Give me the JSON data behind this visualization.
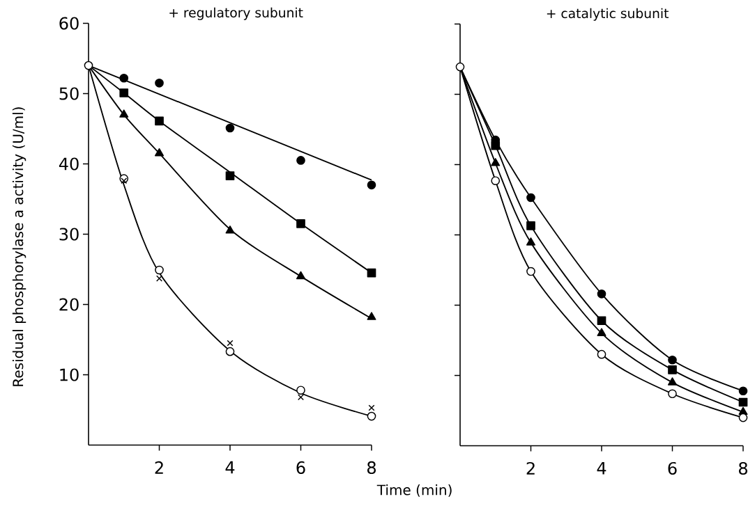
{
  "chart_data": [
    {
      "type": "scatter",
      "title": "+ regulatory subunit",
      "ylabel": "Residual phosphorylase a activity  (U/ml)",
      "xlabel": "Time   (min)",
      "xlim": [
        0,
        8
      ],
      "ylim": [
        0,
        60
      ],
      "xticks": [
        2,
        4,
        6,
        8
      ],
      "yticks": [
        10,
        20,
        30,
        40,
        50,
        60
      ],
      "grid": false,
      "series": [
        {
          "type": "line",
          "marker": "none",
          "color": "#000000",
          "x": [
            0,
            8
          ],
          "values": [
            54.0,
            37.7
          ]
        },
        {
          "type": "line",
          "marker": "none",
          "color": "#000000",
          "x": [
            0,
            1,
            2,
            4,
            6,
            8
          ],
          "values": [
            54.0,
            50.1,
            46.1,
            38.8,
            31.5,
            24.5
          ]
        },
        {
          "type": "line",
          "marker": "none",
          "color": "#000000",
          "x": [
            0,
            1,
            2,
            4,
            6,
            8
          ],
          "values": [
            54.0,
            47.0,
            41.5,
            30.7,
            24.0,
            18.0
          ]
        },
        {
          "type": "line",
          "marker": "none",
          "color": "#000000",
          "x": [
            0,
            1,
            2,
            4,
            6,
            8
          ],
          "values": [
            54.0,
            37.0,
            24.5,
            13.4,
            7.4,
            4.1
          ]
        },
        {
          "marker": "circle",
          "color": "#000000",
          "x": [
            1,
            2,
            4,
            6,
            8
          ],
          "values": [
            52.2,
            51.5,
            45.1,
            40.5,
            37.0
          ]
        },
        {
          "marker": "square",
          "color": "#000000",
          "x": [
            1,
            2,
            4,
            6,
            8
          ],
          "values": [
            50.1,
            46.1,
            38.3,
            31.5,
            24.5
          ]
        },
        {
          "marker": "triangle",
          "color": "#000000",
          "x": [
            1,
            2,
            4,
            6,
            8
          ],
          "values": [
            47.0,
            41.5,
            30.5,
            24.0,
            18.2
          ]
        },
        {
          "marker": "circle",
          "color": "#ffffff",
          "x": [
            0,
            1,
            2,
            4,
            6,
            8
          ],
          "values": [
            54.0,
            37.9,
            24.9,
            13.3,
            7.8,
            4.1
          ]
        },
        {
          "marker": "cross",
          "color": "#000000",
          "x": [
            1,
            2,
            4,
            6,
            8
          ],
          "values": [
            37.6,
            23.7,
            14.5,
            6.8,
            5.3
          ]
        }
      ]
    },
    {
      "type": "line",
      "title": "+ catalytic subunit",
      "xlim": [
        0,
        8
      ],
      "ylim": [
        0,
        60
      ],
      "xticks": [
        2,
        4,
        6,
        8
      ],
      "yticks": [
        10,
        20,
        30,
        40,
        50,
        60
      ],
      "tick_labels": "x",
      "grid": false,
      "series": [
        {
          "marker": "none",
          "color": "#000000",
          "x": [
            0,
            1,
            2,
            4,
            6,
            8
          ],
          "values": [
            53.9,
            43.5,
            35.3,
            21.6,
            12.2,
            7.8
          ]
        },
        {
          "marker": "none",
          "color": "#000000",
          "x": [
            0,
            1,
            2,
            4,
            6,
            8
          ],
          "values": [
            53.9,
            42.7,
            31.3,
            17.8,
            10.8,
            6.2
          ]
        },
        {
          "marker": "none",
          "color": "#000000",
          "x": [
            0,
            1,
            2,
            4,
            6,
            8
          ],
          "values": [
            53.9,
            40.2,
            28.9,
            16.0,
            9.0,
            4.8
          ]
        },
        {
          "marker": "none",
          "color": "#000000",
          "x": [
            0,
            1,
            2,
            4,
            6,
            8
          ],
          "values": [
            53.9,
            37.7,
            24.8,
            13.0,
            7.4,
            4.0
          ]
        },
        {
          "type": "scatter",
          "marker": "circle",
          "color": "#000000",
          "x": [
            1,
            2,
            4,
            6,
            8
          ],
          "values": [
            43.5,
            35.3,
            21.6,
            12.2,
            7.8
          ]
        },
        {
          "type": "scatter",
          "marker": "square",
          "color": "#000000",
          "x": [
            1,
            2,
            4,
            6,
            8
          ],
          "values": [
            42.7,
            31.3,
            17.8,
            10.8,
            6.2
          ]
        },
        {
          "type": "scatter",
          "marker": "triangle",
          "color": "#000000",
          "x": [
            1,
            2,
            4,
            6,
            8
          ],
          "values": [
            40.2,
            28.9,
            16.0,
            9.0,
            4.8
          ]
        },
        {
          "type": "scatter",
          "marker": "circle",
          "color": "#ffffff",
          "x": [
            0,
            1,
            2,
            4,
            6,
            8
          ],
          "values": [
            53.9,
            37.7,
            24.8,
            13.0,
            7.4,
            4.0
          ]
        }
      ]
    }
  ]
}
